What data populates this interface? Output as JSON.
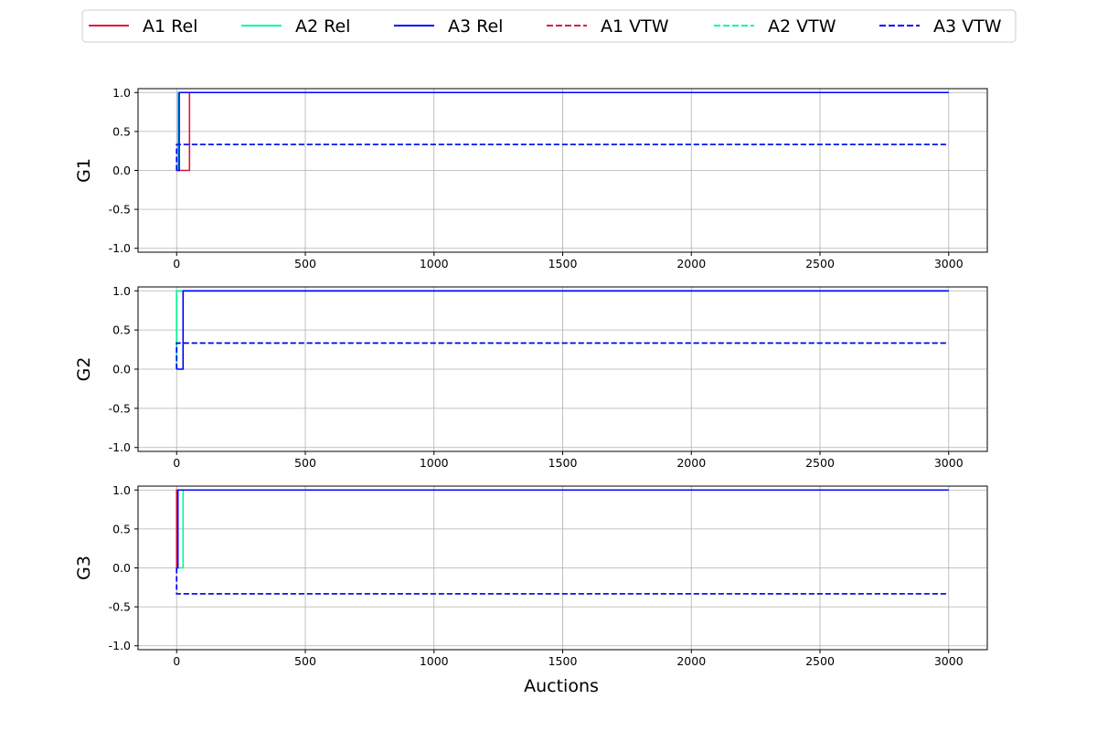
{
  "chart_data": {
    "type": "line",
    "xlabel": "Auctions",
    "xlim": [
      -150,
      3150
    ],
    "ylim": [
      -1.05,
      1.05
    ],
    "xticks": [
      0,
      500,
      1000,
      1500,
      2000,
      2500,
      3000
    ],
    "yticks": [
      -1.0,
      -0.5,
      0.0,
      0.5,
      1.0
    ],
    "xtick_labels": [
      "0",
      "500",
      "1000",
      "1500",
      "2000",
      "2500",
      "3000"
    ],
    "ytick_labels": [
      "-1.0",
      "-0.5",
      "0.0",
      "0.5",
      "1.0"
    ],
    "grid": true,
    "legend_position": "top-center",
    "legend": [
      {
        "name": "A1 Rel",
        "color": "#dc143c",
        "style": "solid"
      },
      {
        "name": "A2 Rel",
        "color": "#00fa9a",
        "style": "solid"
      },
      {
        "name": "A3 Rel",
        "color": "#0000ff",
        "style": "solid"
      },
      {
        "name": "A1 VTW",
        "color": "#dc143c",
        "style": "dashed"
      },
      {
        "name": "A2 VTW",
        "color": "#00fa9a",
        "style": "dashed"
      },
      {
        "name": "A3 VTW",
        "color": "#0000ff",
        "style": "dashed"
      }
    ],
    "panels": [
      {
        "ylabel": "G1",
        "series": [
          {
            "name": "A1 Rel",
            "color": "#dc143c",
            "style": "solid",
            "x": [
              0,
              50,
              50,
              3000
            ],
            "y": [
              0,
              0,
              1,
              1
            ]
          },
          {
            "name": "A2 Rel",
            "color": "#00fa9a",
            "style": "solid",
            "x": [
              0,
              5,
              5,
              3000
            ],
            "y": [
              0,
              0,
              1,
              1
            ]
          },
          {
            "name": "A3 Rel",
            "color": "#0000ff",
            "style": "solid",
            "x": [
              0,
              10,
              10,
              3000
            ],
            "y": [
              0,
              0,
              1,
              1
            ]
          },
          {
            "name": "A1 VTW",
            "color": "#dc143c",
            "style": "dashed",
            "x": [
              0,
              0,
              3000
            ],
            "y": [
              0,
              0.333,
              0.333
            ]
          },
          {
            "name": "A2 VTW",
            "color": "#00fa9a",
            "style": "dashed",
            "x": [
              0,
              0,
              3000
            ],
            "y": [
              0,
              0.333,
              0.333
            ]
          },
          {
            "name": "A3 VTW",
            "color": "#0000ff",
            "style": "dashed",
            "x": [
              0,
              0,
              3000
            ],
            "y": [
              0,
              0.333,
              0.333
            ]
          }
        ]
      },
      {
        "ylabel": "G2",
        "series": [
          {
            "name": "A1 Rel",
            "color": "#dc143c",
            "style": "solid",
            "x": [
              0,
              0,
              3000
            ],
            "y": [
              0,
              1,
              1
            ]
          },
          {
            "name": "A2 Rel",
            "color": "#00fa9a",
            "style": "solid",
            "x": [
              0,
              0,
              3000
            ],
            "y": [
              0,
              1,
              1
            ]
          },
          {
            "name": "A3 Rel",
            "color": "#0000ff",
            "style": "solid",
            "x": [
              0,
              25,
              25,
              3000
            ],
            "y": [
              0,
              0,
              1,
              1
            ]
          },
          {
            "name": "A1 VTW",
            "color": "#dc143c",
            "style": "dashed",
            "x": [
              0,
              0,
              3000
            ],
            "y": [
              0,
              0.333,
              0.333
            ]
          },
          {
            "name": "A2 VTW",
            "color": "#00fa9a",
            "style": "dashed",
            "x": [
              0,
              0,
              3000
            ],
            "y": [
              0,
              0.333,
              0.333
            ]
          },
          {
            "name": "A3 VTW",
            "color": "#0000ff",
            "style": "dashed",
            "x": [
              0,
              0,
              3000
            ],
            "y": [
              0,
              0.333,
              0.333
            ]
          }
        ]
      },
      {
        "ylabel": "G3",
        "series": [
          {
            "name": "A1 Rel",
            "color": "#dc143c",
            "style": "solid",
            "x": [
              0,
              0,
              3000
            ],
            "y": [
              0,
              1,
              1
            ]
          },
          {
            "name": "A2 Rel",
            "color": "#00fa9a",
            "style": "solid",
            "x": [
              0,
              25,
              25,
              3000
            ],
            "y": [
              0,
              0,
              1,
              1
            ]
          },
          {
            "name": "A3 Rel",
            "color": "#0000ff",
            "style": "solid",
            "x": [
              0,
              5,
              5,
              3000
            ],
            "y": [
              0,
              0,
              1,
              1
            ]
          },
          {
            "name": "A1 VTW",
            "color": "#dc143c",
            "style": "dashed",
            "x": [
              0,
              0,
              3000
            ],
            "y": [
              0,
              -0.333,
              -0.333
            ]
          },
          {
            "name": "A2 VTW",
            "color": "#00fa9a",
            "style": "dashed",
            "x": [
              0,
              0,
              3000
            ],
            "y": [
              0,
              -0.333,
              -0.333
            ]
          },
          {
            "name": "A3 VTW",
            "color": "#0000ff",
            "style": "dashed",
            "x": [
              0,
              0,
              3000
            ],
            "y": [
              0,
              -0.333,
              -0.333
            ]
          }
        ]
      }
    ]
  }
}
